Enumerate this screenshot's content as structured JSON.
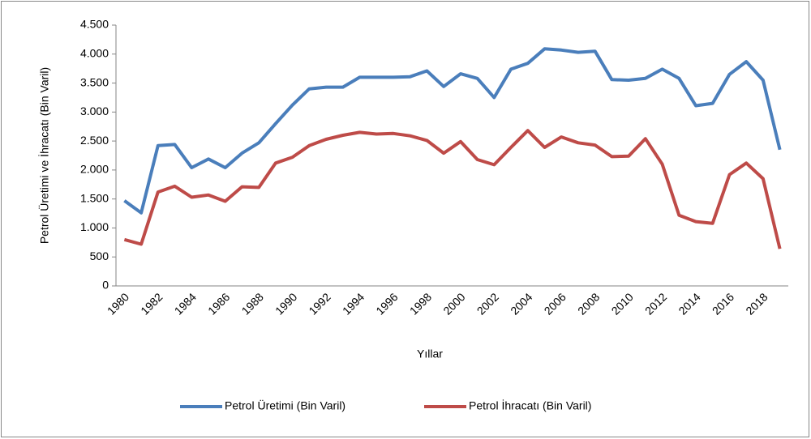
{
  "chart_data": {
    "type": "line",
    "x_label": "Yıllar",
    "y_label": "Petrol Üretimi ve İhracatı (Bin Varil)",
    "categories": [
      "1980",
      null,
      "1982",
      null,
      "1984",
      null,
      "1986",
      null,
      "1988",
      null,
      "1990",
      null,
      "1992",
      null,
      "1994",
      null,
      "1996",
      null,
      "1998",
      null,
      "2000",
      null,
      "2002",
      null,
      "2004",
      null,
      "2006",
      null,
      "2008",
      null,
      "2010",
      null,
      "2012",
      null,
      "2014",
      null,
      "2016",
      null,
      "2018",
      null
    ],
    "series": [
      {
        "name": "Petrol Üretimi (Bin Varil)",
        "color": "#4a7ebb",
        "values": [
          1470,
          1260,
          2420,
          2440,
          2040,
          2190,
          2040,
          2290,
          2470,
          2800,
          3120,
          3400,
          3430,
          3430,
          3600,
          3600,
          3600,
          3610,
          3710,
          3440,
          3660,
          3580,
          3250,
          3740,
          3840,
          4090,
          4070,
          4030,
          4050,
          3560,
          3550,
          3580,
          3740,
          3580,
          3110,
          3150,
          3650,
          3870,
          3550,
          2350
        ]
      },
      {
        "name": "Petrol İhracatı (Bin Varil)",
        "color": "#be4b48",
        "values": [
          800,
          720,
          1620,
          1720,
          1530,
          1570,
          1460,
          1710,
          1700,
          2120,
          2220,
          2420,
          2530,
          2600,
          2650,
          2620,
          2630,
          2590,
          2510,
          2290,
          2490,
          2180,
          2090,
          2390,
          2680,
          2390,
          2570,
          2470,
          2430,
          2230,
          2240,
          2540,
          2100,
          1220,
          1110,
          1080,
          1920,
          2120,
          1850,
          640
        ]
      }
    ],
    "ylim": [
      0,
      4500
    ],
    "yticks": [
      0,
      500,
      {
        "value": 1000,
        "label": "1.000"
      },
      {
        "value": 1500,
        "label": "1.500"
      },
      {
        "value": 2000,
        "label": "2.000"
      },
      {
        "value": 2500,
        "label": "2.500"
      },
      {
        "value": 3000,
        "label": "3.000"
      },
      {
        "value": 3500,
        "label": "3.500"
      },
      {
        "value": 4000,
        "label": "4.000"
      },
      {
        "value": 4500,
        "label": "4.500"
      }
    ],
    "legend": "bottom"
  }
}
